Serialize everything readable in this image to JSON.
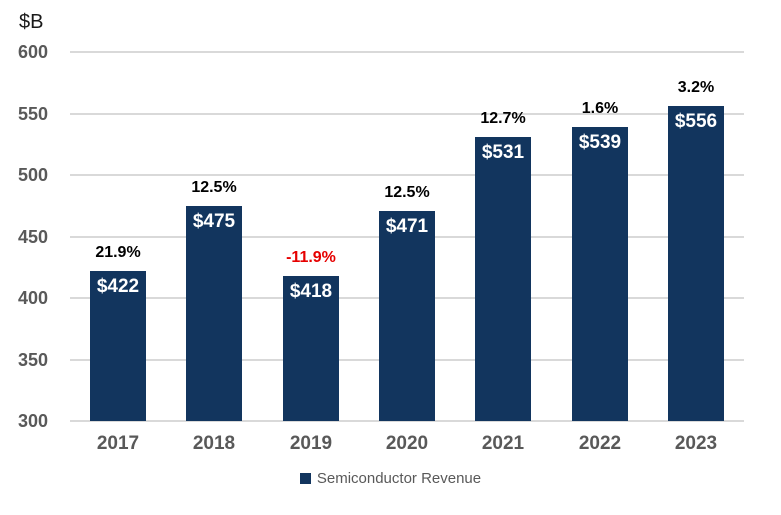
{
  "chart": {
    "unit_label": "$B",
    "legend_label": "Semiconductor Revenue",
    "colors": {
      "bar": "#12355e",
      "value_text": "#ffffff",
      "pct_text": "#000000",
      "pct_negative_text": "#e60000",
      "axis_text": "#595959",
      "gridline": "#d9d9d9"
    }
  },
  "chart_data": {
    "type": "bar",
    "title": "",
    "xlabel": "",
    "ylabel": "$B",
    "categories": [
      "2017",
      "2018",
      "2019",
      "2020",
      "2021",
      "2022",
      "2023"
    ],
    "series": [
      {
        "name": "Semiconductor Revenue",
        "values": [
          422,
          475,
          418,
          471,
          531,
          539,
          556
        ],
        "color": "#12355e"
      }
    ],
    "value_labels": [
      "$422",
      "$475",
      "$418",
      "$471",
      "$531",
      "$539",
      "$556"
    ],
    "growth_labels": [
      "21.9%",
      "12.5%",
      "-11.9%",
      "12.5%",
      "12.7%",
      "1.6%",
      "3.2%"
    ],
    "growth_negative": [
      false,
      false,
      true,
      false,
      false,
      false,
      false
    ],
    "ylim": [
      300,
      600
    ],
    "yticks": [
      600,
      550,
      500,
      450,
      400,
      350,
      300
    ],
    "grid": true,
    "legend_position": "bottom-center"
  }
}
